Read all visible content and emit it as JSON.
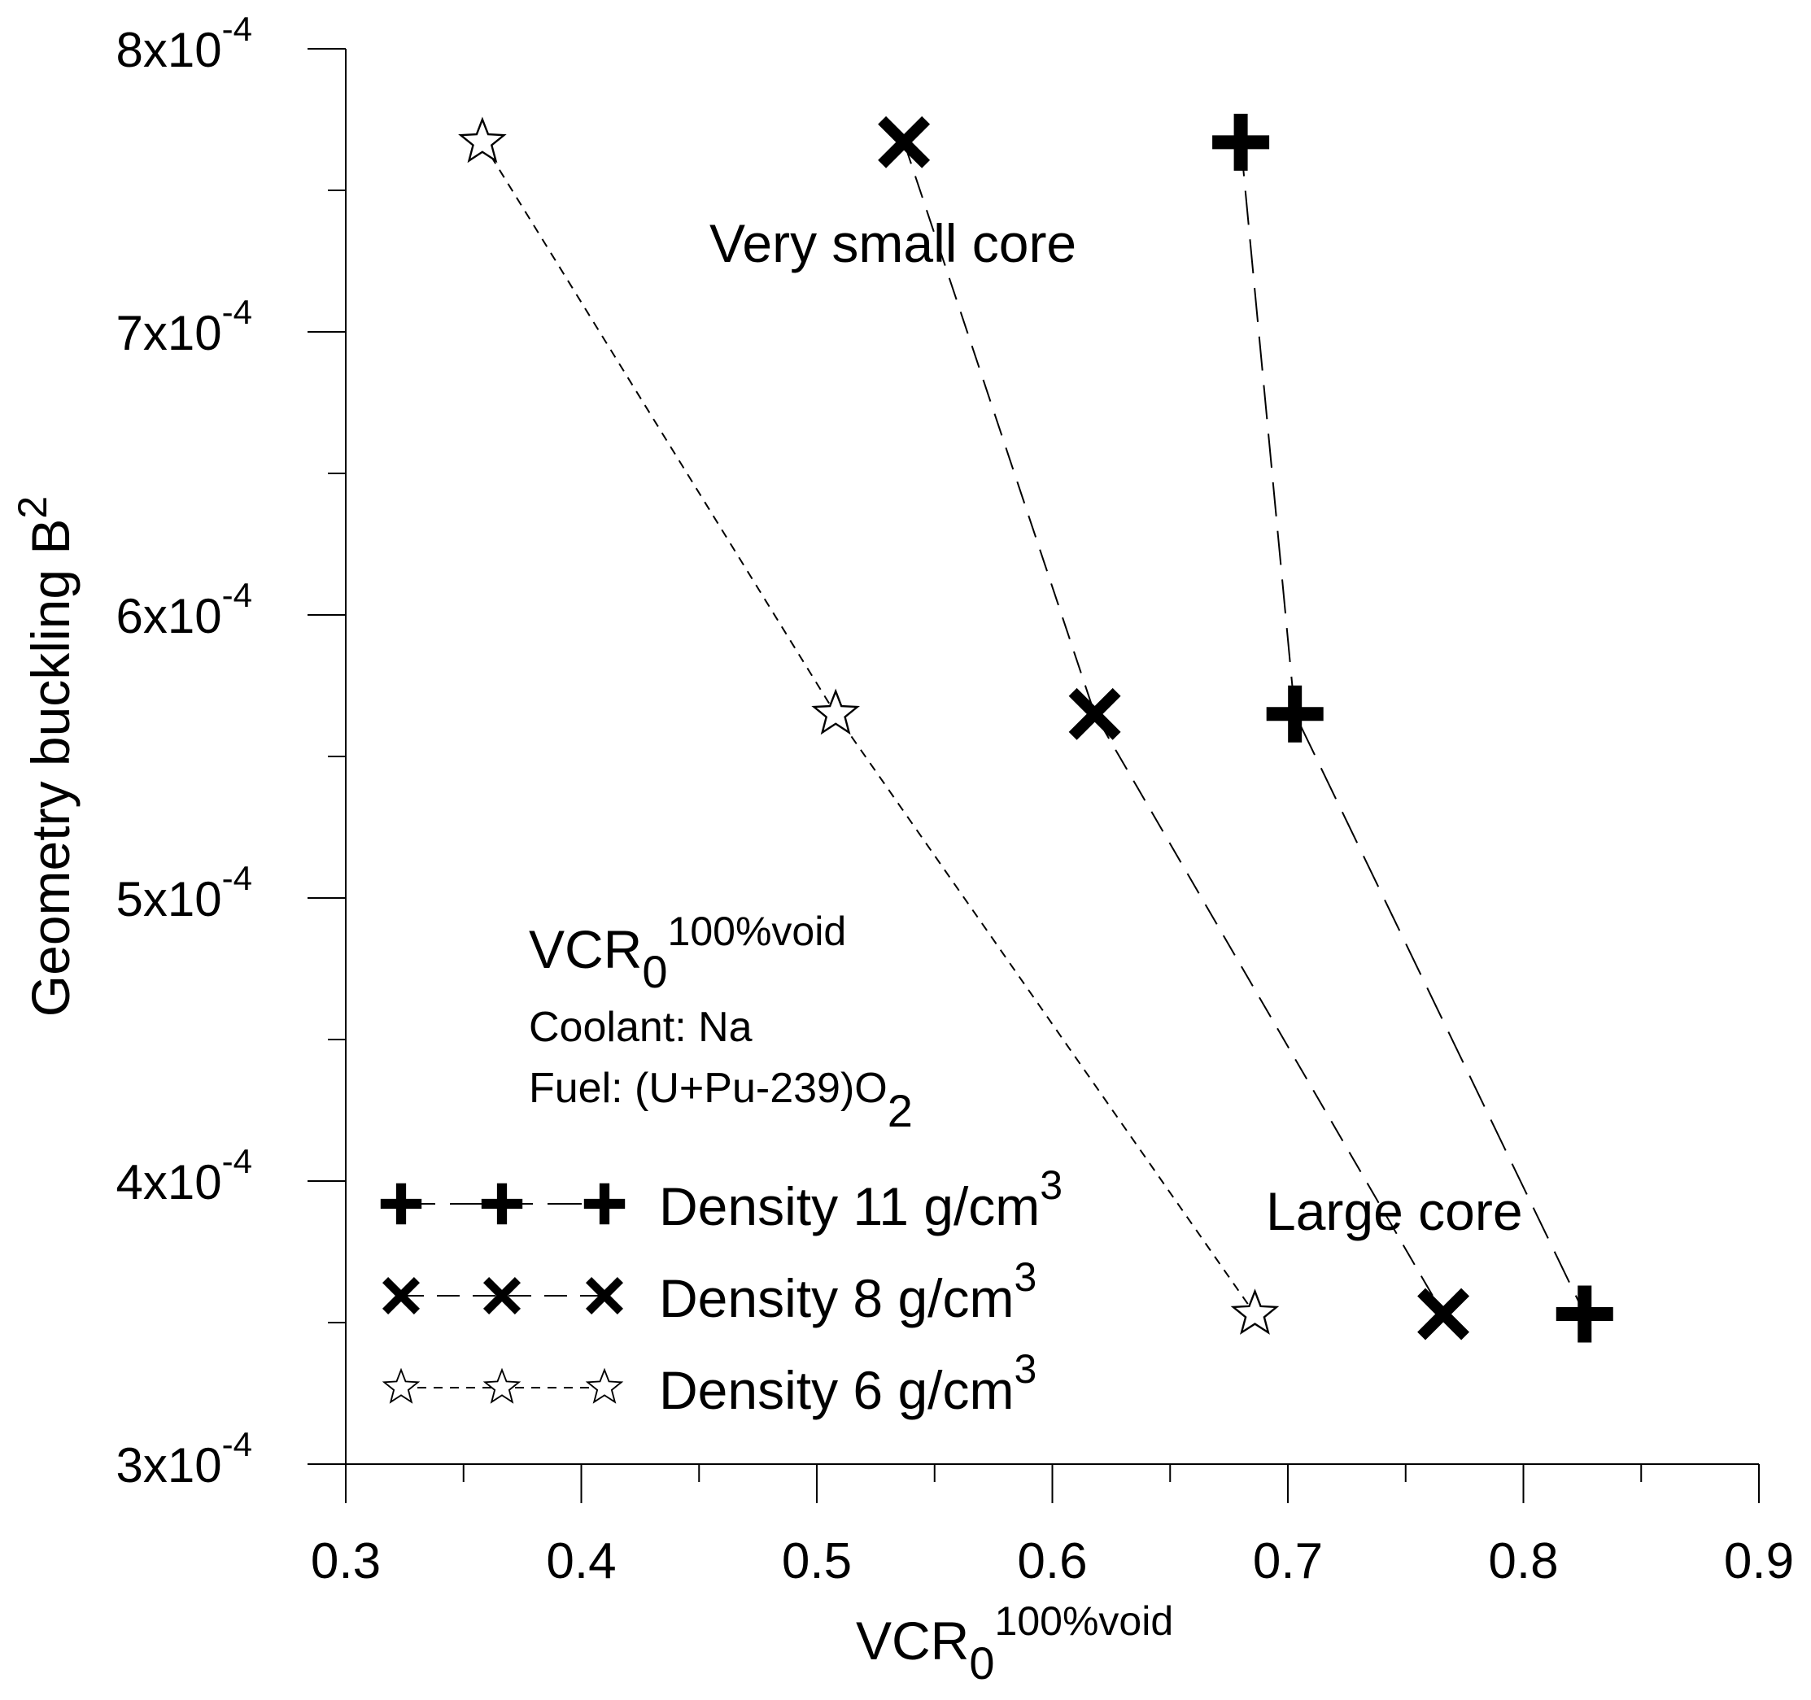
{
  "chart_data": {
    "type": "scatter",
    "title": "",
    "xlabel": {
      "main": "VCR",
      "sub": "0",
      "sup": "100%void"
    },
    "ylabel": {
      "main": "Geometry buckling B",
      "sup": "2"
    },
    "xlim": [
      0.3,
      0.9
    ],
    "ylim": [
      0.0003,
      0.0008
    ],
    "x_ticks": [
      {
        "value": 0.3,
        "label": "0.3"
      },
      {
        "value": 0.4,
        "label": "0.4"
      },
      {
        "value": 0.5,
        "label": "0.5"
      },
      {
        "value": 0.6,
        "label": "0.6"
      },
      {
        "value": 0.7,
        "label": "0.7"
      },
      {
        "value": 0.8,
        "label": "0.8"
      },
      {
        "value": 0.9,
        "label": "0.9"
      }
    ],
    "x_minor_ticks": [
      0.35,
      0.45,
      0.55,
      0.65,
      0.75,
      0.85
    ],
    "y_ticks": [
      {
        "value": 0.0003,
        "mant": "3x10",
        "exp": "-4"
      },
      {
        "value": 0.0004,
        "mant": "4x10",
        "exp": "-4"
      },
      {
        "value": 0.0005,
        "mant": "5x10",
        "exp": "-4"
      },
      {
        "value": 0.0006,
        "mant": "6x10",
        "exp": "-4"
      },
      {
        "value": 0.0007,
        "mant": "7x10",
        "exp": "-4"
      },
      {
        "value": 0.0008,
        "mant": "8x10",
        "exp": "-4"
      }
    ],
    "y_minor_ticks": [
      0.00035,
      0.00045,
      0.00055,
      0.00065,
      0.00075
    ],
    "grid": false,
    "legend_position": "bottom-left",
    "series": [
      {
        "name": "Density 11 g/cm",
        "name_sup": "3",
        "marker": "plus",
        "line": "long-dash",
        "x": [
          0.68,
          0.703,
          0.826
        ],
        "y": [
          0.000767,
          0.000565,
          0.000353
        ]
      },
      {
        "name": "Density 8 g/cm",
        "name_sup": "3",
        "marker": "x",
        "line": "dash",
        "x": [
          0.537,
          0.618,
          0.766
        ],
        "y": [
          0.000767,
          0.000565,
          0.000353
        ]
      },
      {
        "name": "Density 6 g/cm",
        "name_sup": "3",
        "marker": "star",
        "line": "short-dash",
        "x": [
          0.358,
          0.508,
          0.686
        ],
        "y": [
          0.000767,
          0.000565,
          0.000353
        ]
      }
    ],
    "annotations": {
      "very_small_core": "Very small core",
      "large_core": "Large core",
      "info_main": "VCR",
      "info_sub": "0",
      "info_sup": "100%void",
      "coolant": "Coolant: Na",
      "fuel": "Fuel: (U+Pu-239)O",
      "fuel_sub": "2"
    }
  }
}
